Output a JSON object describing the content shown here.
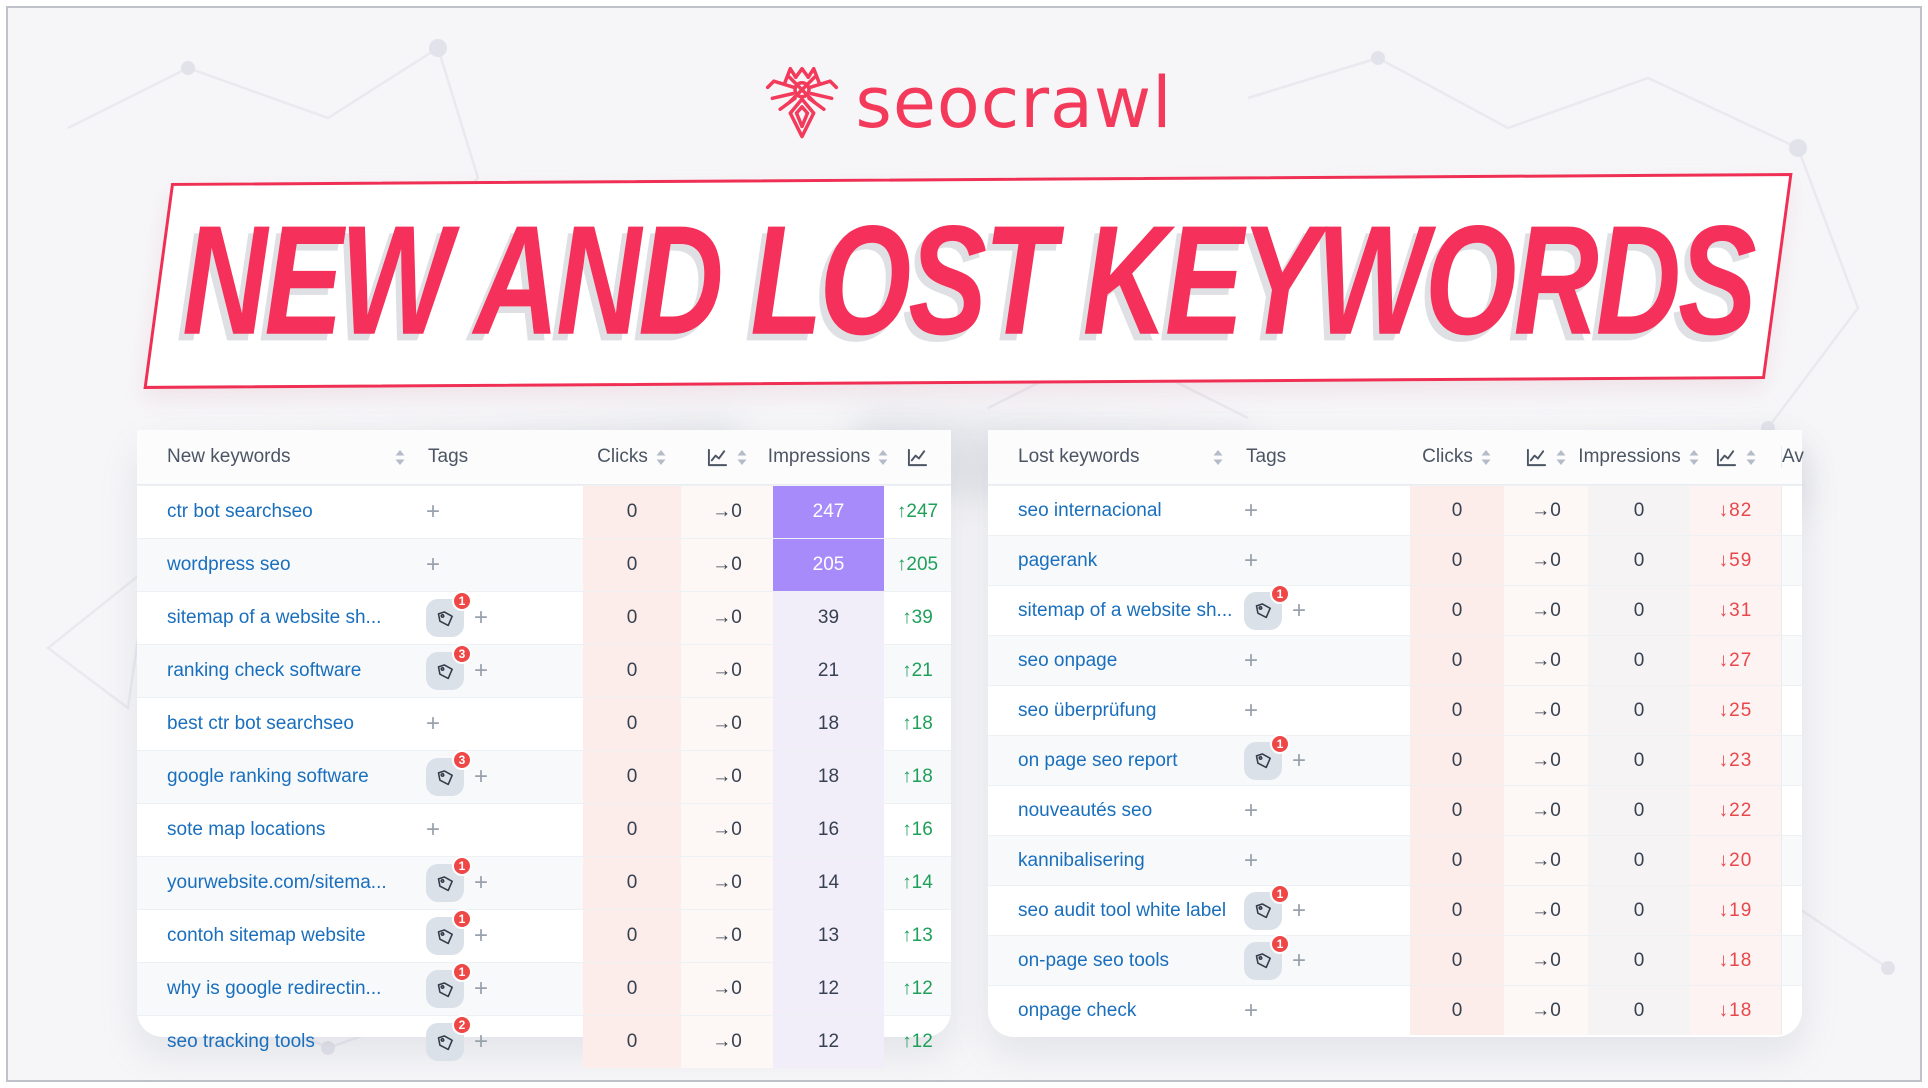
{
  "logo": {
    "brand": "seocrawl"
  },
  "banner": {
    "title": "NEW AND LOST KEYWORDS"
  },
  "colors": {
    "brand_red": "#f43a5b",
    "banner_text": "#f5305a",
    "banner_border": "#ef3054",
    "link_blue": "#1a6fbd",
    "delta_up_green": "#1fa05a",
    "delta_down_red": "#e8474b",
    "highlight_purple": "#a78bfa",
    "badge_red": "#ef4646",
    "clicks_column_tint": "#fcedea"
  },
  "tables": [
    {
      "name": "new-keywords",
      "columns": [
        {
          "label": "New keywords",
          "sortable": true
        },
        {
          "label": "Tags",
          "sortable": false
        },
        {
          "label": "Clicks",
          "sortable": true
        },
        {
          "icon": "line-chart-icon",
          "sortable": true
        },
        {
          "label": "Impressions",
          "sortable": true
        },
        {
          "icon": "line-chart-icon",
          "sortable": false
        }
      ],
      "rows": [
        {
          "keyword": "ctr bot searchseo",
          "tags": 0,
          "clicks": "0",
          "clicks_trend": "→0",
          "impressions": "247",
          "impressions_highlight": true,
          "delta": "↑247",
          "delta_dir": "up"
        },
        {
          "keyword": "wordpress seo",
          "tags": 0,
          "clicks": "0",
          "clicks_trend": "→0",
          "impressions": "205",
          "impressions_highlight": true,
          "delta": "↑205",
          "delta_dir": "up"
        },
        {
          "keyword": "sitemap of a website sh...",
          "tags": 1,
          "clicks": "0",
          "clicks_trend": "→0",
          "impressions": "39",
          "impressions_highlight": false,
          "delta": "↑39",
          "delta_dir": "up"
        },
        {
          "keyword": "ranking check software",
          "tags": 3,
          "clicks": "0",
          "clicks_trend": "→0",
          "impressions": "21",
          "impressions_highlight": false,
          "delta": "↑21",
          "delta_dir": "up"
        },
        {
          "keyword": "best ctr bot searchseo",
          "tags": 0,
          "clicks": "0",
          "clicks_trend": "→0",
          "impressions": "18",
          "impressions_highlight": false,
          "delta": "↑18",
          "delta_dir": "up"
        },
        {
          "keyword": "google ranking software",
          "tags": 3,
          "clicks": "0",
          "clicks_trend": "→0",
          "impressions": "18",
          "impressions_highlight": false,
          "delta": "↑18",
          "delta_dir": "up"
        },
        {
          "keyword": "sote map locations",
          "tags": 0,
          "clicks": "0",
          "clicks_trend": "→0",
          "impressions": "16",
          "impressions_highlight": false,
          "delta": "↑16",
          "delta_dir": "up"
        },
        {
          "keyword": "yourwebsite.com/sitema...",
          "tags": 1,
          "clicks": "0",
          "clicks_trend": "→0",
          "impressions": "14",
          "impressions_highlight": false,
          "delta": "↑14",
          "delta_dir": "up"
        },
        {
          "keyword": "contoh sitemap website",
          "tags": 1,
          "clicks": "0",
          "clicks_trend": "→0",
          "impressions": "13",
          "impressions_highlight": false,
          "delta": "↑13",
          "delta_dir": "up"
        },
        {
          "keyword": "why is google redirectin...",
          "tags": 1,
          "clicks": "0",
          "clicks_trend": "→0",
          "impressions": "12",
          "impressions_highlight": false,
          "delta": "↑12",
          "delta_dir": "up"
        },
        {
          "keyword": "seo tracking tools",
          "tags": 2,
          "clicks": "0",
          "clicks_trend": "→0",
          "impressions": "12",
          "impressions_highlight": false,
          "delta": "↑12",
          "delta_dir": "up"
        }
      ]
    },
    {
      "name": "lost-keywords",
      "columns": [
        {
          "label": "Lost keywords",
          "sortable": true
        },
        {
          "label": "Tags",
          "sortable": false
        },
        {
          "label": "Clicks",
          "sortable": true
        },
        {
          "icon": "line-chart-icon",
          "sortable": true
        },
        {
          "label": "Impressions",
          "sortable": true
        },
        {
          "icon": "line-chart-icon",
          "sortable": true
        },
        {
          "label": "Av",
          "sortable": false
        }
      ],
      "rows": [
        {
          "keyword": "seo internacional",
          "tags": 0,
          "clicks": "0",
          "clicks_trend": "→0",
          "impressions": "0",
          "impressions_highlight": false,
          "delta": "↓82",
          "delta_dir": "down"
        },
        {
          "keyword": "pagerank",
          "tags": 0,
          "clicks": "0",
          "clicks_trend": "→0",
          "impressions": "0",
          "impressions_highlight": false,
          "delta": "↓59",
          "delta_dir": "down"
        },
        {
          "keyword": "sitemap of a website sh...",
          "tags": 1,
          "clicks": "0",
          "clicks_trend": "→0",
          "impressions": "0",
          "impressions_highlight": false,
          "delta": "↓31",
          "delta_dir": "down"
        },
        {
          "keyword": "seo onpage",
          "tags": 0,
          "clicks": "0",
          "clicks_trend": "→0",
          "impressions": "0",
          "impressions_highlight": false,
          "delta": "↓27",
          "delta_dir": "down"
        },
        {
          "keyword": "seo überprüfung",
          "tags": 0,
          "clicks": "0",
          "clicks_trend": "→0",
          "impressions": "0",
          "impressions_highlight": false,
          "delta": "↓25",
          "delta_dir": "down"
        },
        {
          "keyword": "on page seo report",
          "tags": 1,
          "clicks": "0",
          "clicks_trend": "→0",
          "impressions": "0",
          "impressions_highlight": false,
          "delta": "↓23",
          "delta_dir": "down"
        },
        {
          "keyword": "nouveautés seo",
          "tags": 0,
          "clicks": "0",
          "clicks_trend": "→0",
          "impressions": "0",
          "impressions_highlight": false,
          "delta": "↓22",
          "delta_dir": "down"
        },
        {
          "keyword": "kannibalisering",
          "tags": 0,
          "clicks": "0",
          "clicks_trend": "→0",
          "impressions": "0",
          "impressions_highlight": false,
          "delta": "↓20",
          "delta_dir": "down"
        },
        {
          "keyword": "seo audit tool white label",
          "tags": 1,
          "clicks": "0",
          "clicks_trend": "→0",
          "impressions": "0",
          "impressions_highlight": false,
          "delta": "↓19",
          "delta_dir": "down"
        },
        {
          "keyword": "on-page seo tools",
          "tags": 1,
          "clicks": "0",
          "clicks_trend": "→0",
          "impressions": "0",
          "impressions_highlight": false,
          "delta": "↓18",
          "delta_dir": "down"
        },
        {
          "keyword": "onpage check",
          "tags": 0,
          "clicks": "0",
          "clicks_trend": "→0",
          "impressions": "0",
          "impressions_highlight": false,
          "delta": "↓18",
          "delta_dir": "down"
        }
      ]
    }
  ]
}
